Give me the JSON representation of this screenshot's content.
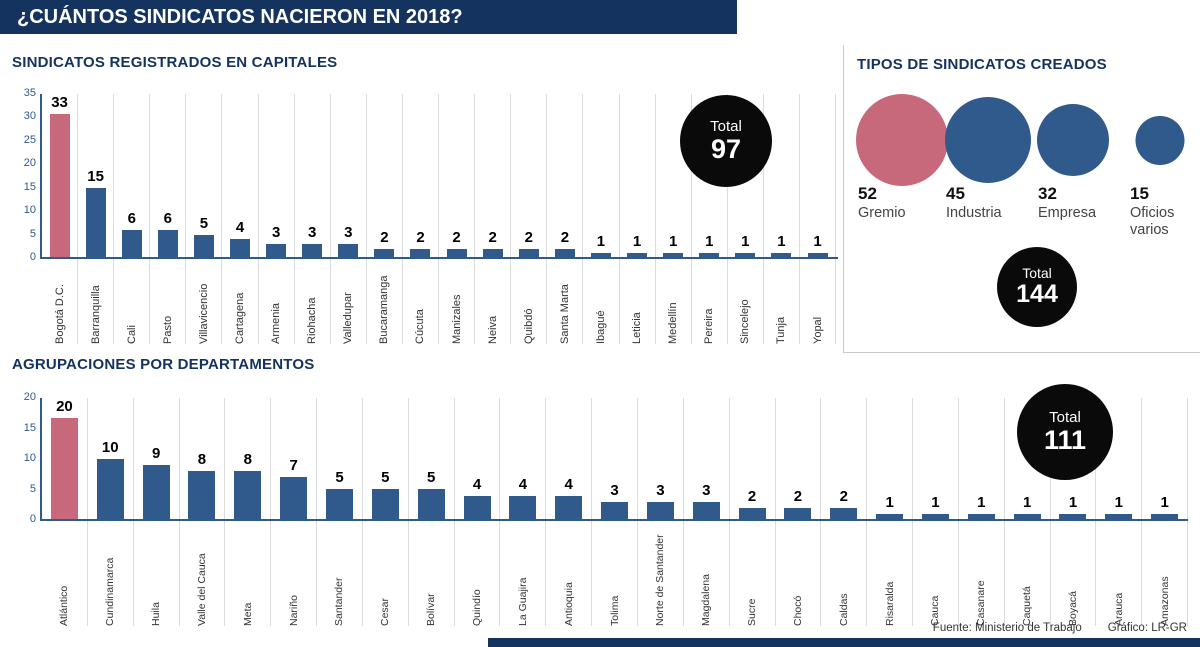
{
  "title": "¿CUÁNTOS SINDICATOS NACIERON EN 2018?",
  "colors": {
    "navy": "#14335f",
    "bar_blue": "#2f5a8b",
    "bar_pink": "#c8697b",
    "badge_black": "#0a0a0a"
  },
  "footer": {
    "source": "Fuente: Ministerio de Trabajo",
    "credit": "Gráfico: LR-GR"
  },
  "chart_data": [
    {
      "id": "capitals",
      "type": "bar",
      "title": "SINDICATOS REGISTRADOS EN CAPITALES",
      "total_label": "Total",
      "total": 97,
      "ylim": [
        0,
        35
      ],
      "yticks": [
        0,
        5,
        10,
        15,
        20,
        25,
        30,
        35
      ],
      "highlight_index": 0,
      "highlight_color": "#c8697b",
      "categories": [
        "Bogotá D.C.",
        "Barranquilla",
        "Cali",
        "Pasto",
        "Villavicencio",
        "Cartagena",
        "Armenia",
        "Riohacha",
        "Valledupar",
        "Bucaramanga",
        "Cúcuta",
        "Manizales",
        "Neiva",
        "Quibdó",
        "Santa Marta",
        "Ibagué",
        "Leticia",
        "Medellín",
        "Pereira",
        "Sincelejo",
        "Tunja",
        "Yopal"
      ],
      "values": [
        33,
        15,
        6,
        6,
        5,
        4,
        3,
        3,
        3,
        2,
        2,
        2,
        2,
        2,
        2,
        1,
        1,
        1,
        1,
        1,
        1,
        1
      ]
    },
    {
      "id": "types",
      "type": "bubble",
      "title": "TIPOS DE SINDICATOS CREADOS",
      "total_label": "Total",
      "total": 144,
      "items": [
        {
          "label": "Gremio",
          "value": 52,
          "highlight": true
        },
        {
          "label": "Industria",
          "value": 45,
          "highlight": false
        },
        {
          "label": "Empresa",
          "value": 32,
          "highlight": false
        },
        {
          "label": "Oficios varios",
          "value": 15,
          "highlight": false
        }
      ]
    },
    {
      "id": "departments",
      "type": "bar",
      "title": "AGRUPACIONES POR DEPARTAMENTOS",
      "total_label": "Total",
      "total": 111,
      "ylim": [
        0,
        20
      ],
      "yticks": [
        0,
        5,
        10,
        15,
        20
      ],
      "highlight_index": 0,
      "highlight_color": "#c8697b",
      "categories": [
        "Atlántico",
        "Cundinamarca",
        "Huila",
        "Valle del Cauca",
        "Meta",
        "Nariño",
        "Santander",
        "Cesar",
        "Bolívar",
        "Quindío",
        "La Guajira",
        "Antioquia",
        "Tolima",
        "Norte de Santander",
        "Magdalena",
        "Sucre",
        "Chocó",
        "Caldas",
        "Risaralda",
        "Cauca",
        "Casanare",
        "Caquetá",
        "Boyacá",
        "Arauca",
        "Amazonas"
      ],
      "values": [
        20,
        10,
        9,
        8,
        8,
        7,
        5,
        5,
        5,
        4,
        4,
        4,
        3,
        3,
        3,
        2,
        2,
        2,
        1,
        1,
        1,
        1,
        1,
        1,
        1
      ]
    }
  ]
}
